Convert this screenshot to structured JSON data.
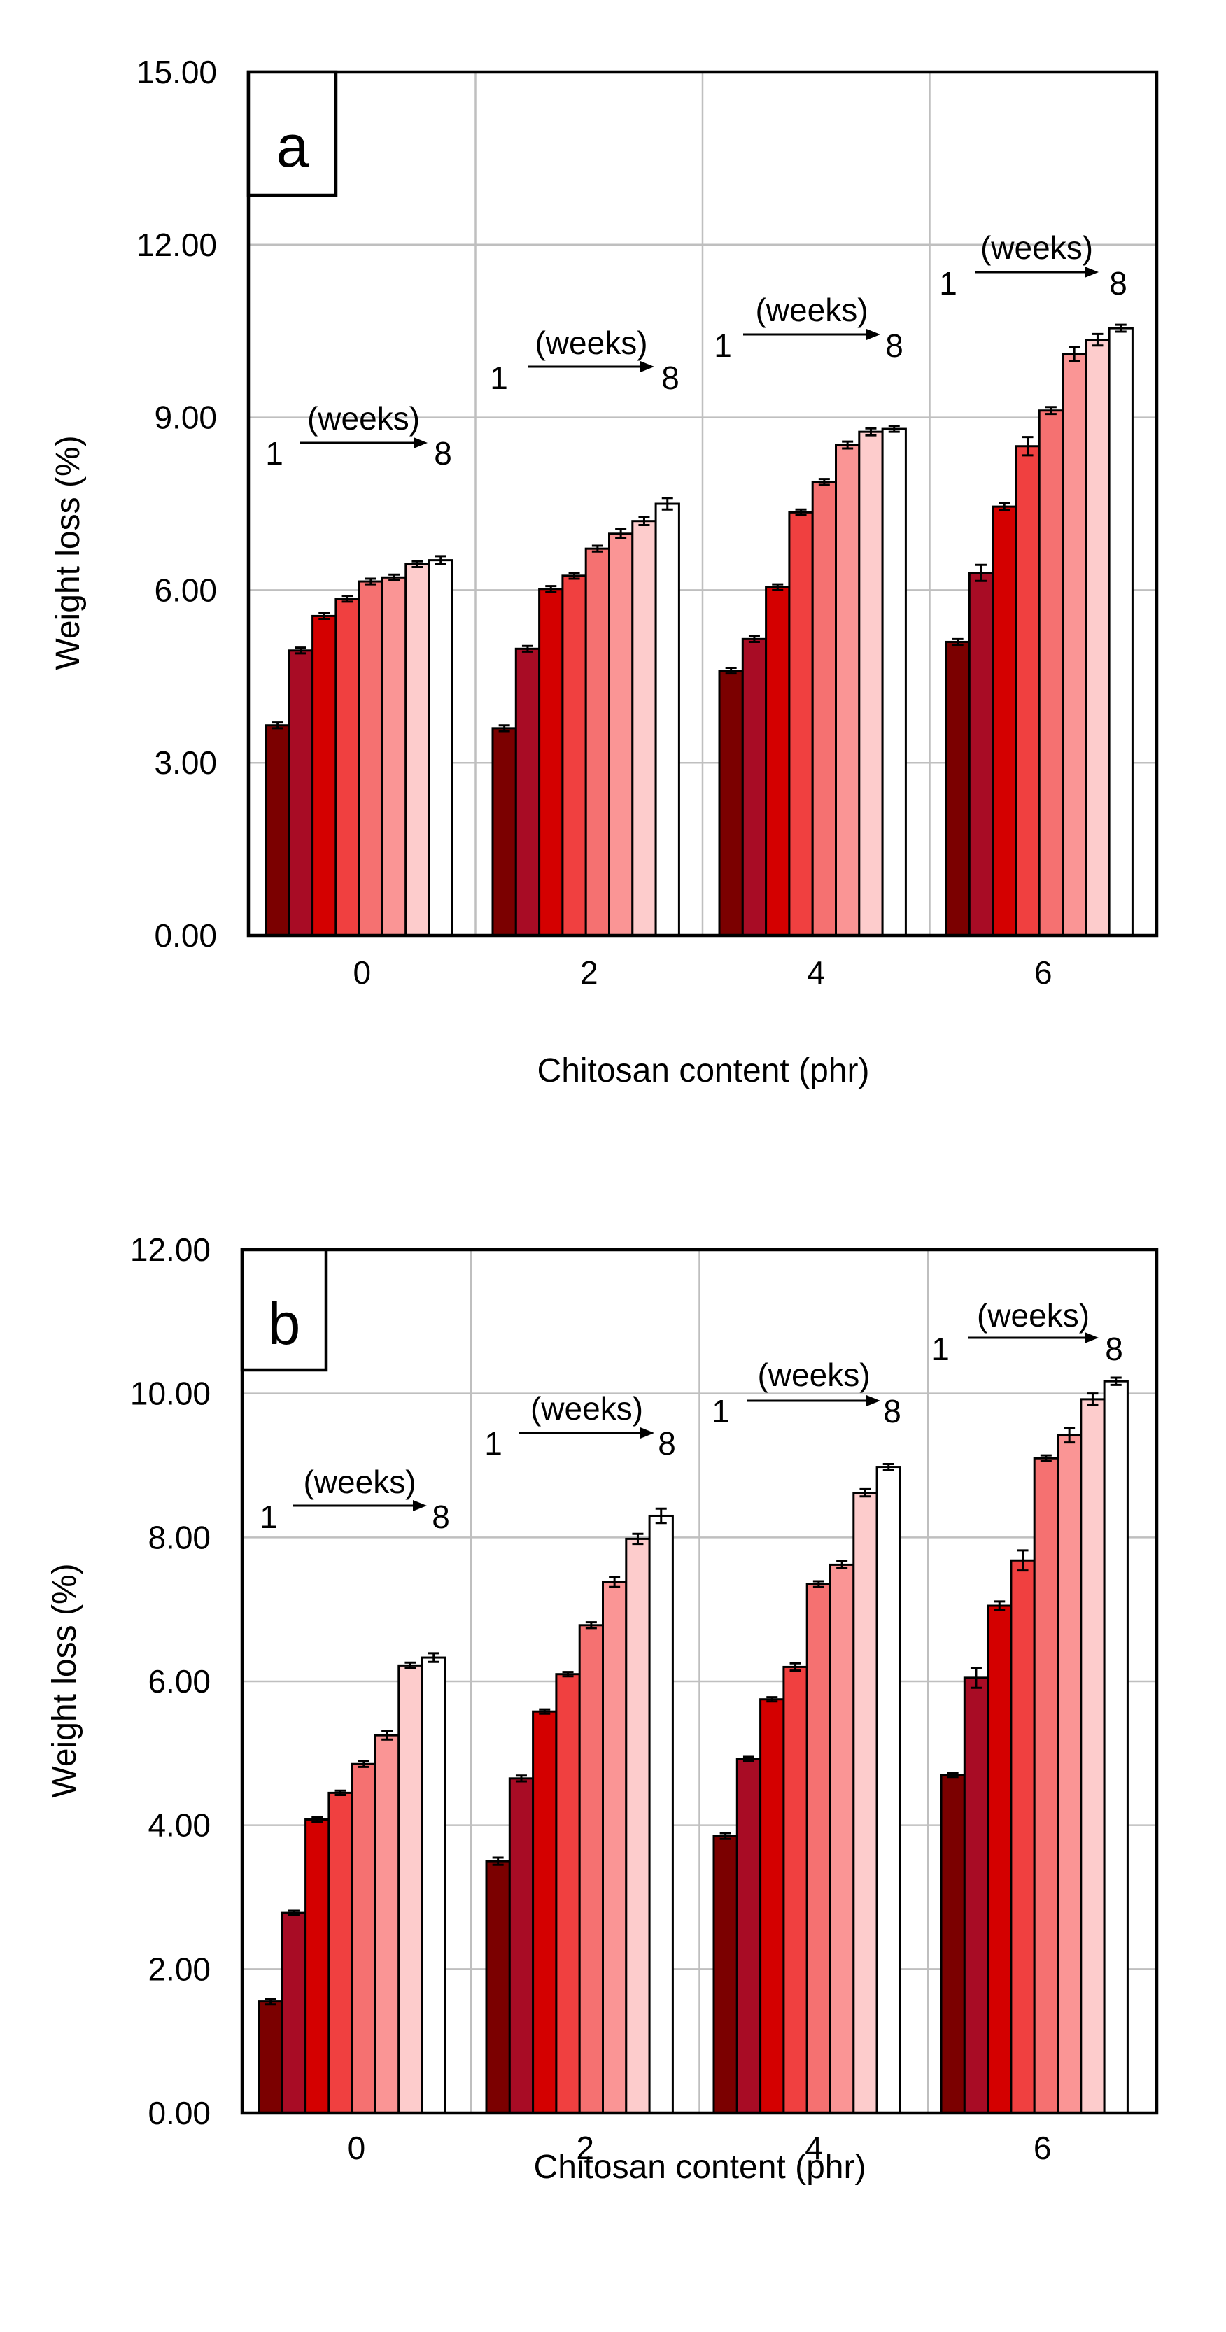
{
  "chart_data": [
    {
      "type": "bar",
      "panel_label": "a",
      "ylabel": "Weight loss (%)",
      "xlabel": "Chitosan content (phr)",
      "ylim": [
        0,
        15
      ],
      "yticks": [
        "0.00",
        "3.00",
        "6.00",
        "9.00",
        "12.00",
        "15.00"
      ],
      "categories": [
        "0",
        "2",
        "4",
        "6"
      ],
      "grid": true,
      "legend": "none",
      "annotation": {
        "start": "1",
        "label": "(weeks)",
        "end": "8"
      },
      "series": [
        {
          "name": "week 1",
          "color": "#7b0000",
          "values": [
            3.65,
            3.6,
            4.6,
            5.1
          ]
        },
        {
          "name": "week 2",
          "color": "#a80c25",
          "values": [
            4.95,
            4.98,
            5.15,
            6.3
          ]
        },
        {
          "name": "week 3",
          "color": "#d40000",
          "values": [
            5.55,
            6.02,
            6.05,
            7.45
          ]
        },
        {
          "name": "week 4",
          "color": "#f04040",
          "values": [
            5.85,
            6.25,
            7.35,
            8.5
          ]
        },
        {
          "name": "week 5",
          "color": "#f57171",
          "values": [
            6.15,
            6.72,
            7.88,
            9.12
          ]
        },
        {
          "name": "week 6",
          "color": "#fa9595",
          "values": [
            6.22,
            6.98,
            8.52,
            10.1
          ]
        },
        {
          "name": "week 7",
          "color": "#fdcccc",
          "values": [
            6.45,
            7.2,
            8.75,
            10.35
          ]
        },
        {
          "name": "week 8",
          "color": "#ffffff",
          "values": [
            6.52,
            7.5,
            8.8,
            10.55
          ]
        }
      ],
      "errors": [
        [
          0.05,
          0.05,
          0.05,
          0.05
        ],
        [
          0.05,
          0.05,
          0.05,
          0.14
        ],
        [
          0.05,
          0.05,
          0.05,
          0.06
        ],
        [
          0.05,
          0.05,
          0.05,
          0.16
        ],
        [
          0.05,
          0.05,
          0.05,
          0.06
        ],
        [
          0.05,
          0.08,
          0.06,
          0.12
        ],
        [
          0.05,
          0.07,
          0.06,
          0.1
        ],
        [
          0.07,
          0.1,
          0.05,
          0.06
        ]
      ]
    },
    {
      "type": "bar",
      "panel_label": "b",
      "ylabel": "Weight loss (%)",
      "xlabel": "Chitosan content (phr)",
      "ylim": [
        0,
        12
      ],
      "yticks": [
        "0.00",
        "2.00",
        "4.00",
        "6.00",
        "8.00",
        "10.00",
        "12.00"
      ],
      "categories": [
        "0",
        "2",
        "4",
        "6"
      ],
      "grid": true,
      "legend": "none",
      "annotation": {
        "start": "1",
        "label": "(weeks)",
        "end": "8"
      },
      "series": [
        {
          "name": "week 1",
          "color": "#7b0000",
          "values": [
            1.55,
            3.5,
            3.85,
            4.7
          ]
        },
        {
          "name": "week 2",
          "color": "#a80c25",
          "values": [
            2.78,
            4.65,
            4.92,
            6.05
          ]
        },
        {
          "name": "week 3",
          "color": "#d40000",
          "values": [
            4.08,
            5.58,
            5.75,
            7.05
          ]
        },
        {
          "name": "week 4",
          "color": "#f04040",
          "values": [
            4.45,
            6.1,
            6.2,
            7.68
          ]
        },
        {
          "name": "week 5",
          "color": "#f57171",
          "values": [
            4.85,
            6.78,
            7.35,
            9.1
          ]
        },
        {
          "name": "week 6",
          "color": "#fa9595",
          "values": [
            5.25,
            7.38,
            7.62,
            9.42
          ]
        },
        {
          "name": "week 7",
          "color": "#fdcccc",
          "values": [
            6.22,
            7.98,
            8.62,
            9.92
          ]
        },
        {
          "name": "week 8",
          "color": "#ffffff",
          "values": [
            6.33,
            8.3,
            8.98,
            10.17
          ]
        }
      ],
      "errors": [
        [
          0.04,
          0.05,
          0.04,
          0.03
        ],
        [
          0.03,
          0.04,
          0.03,
          0.14
        ],
        [
          0.03,
          0.03,
          0.03,
          0.06
        ],
        [
          0.03,
          0.03,
          0.05,
          0.14
        ],
        [
          0.04,
          0.04,
          0.04,
          0.04
        ],
        [
          0.06,
          0.07,
          0.05,
          0.1
        ],
        [
          0.04,
          0.07,
          0.05,
          0.08
        ],
        [
          0.06,
          0.1,
          0.04,
          0.05
        ]
      ]
    }
  ]
}
